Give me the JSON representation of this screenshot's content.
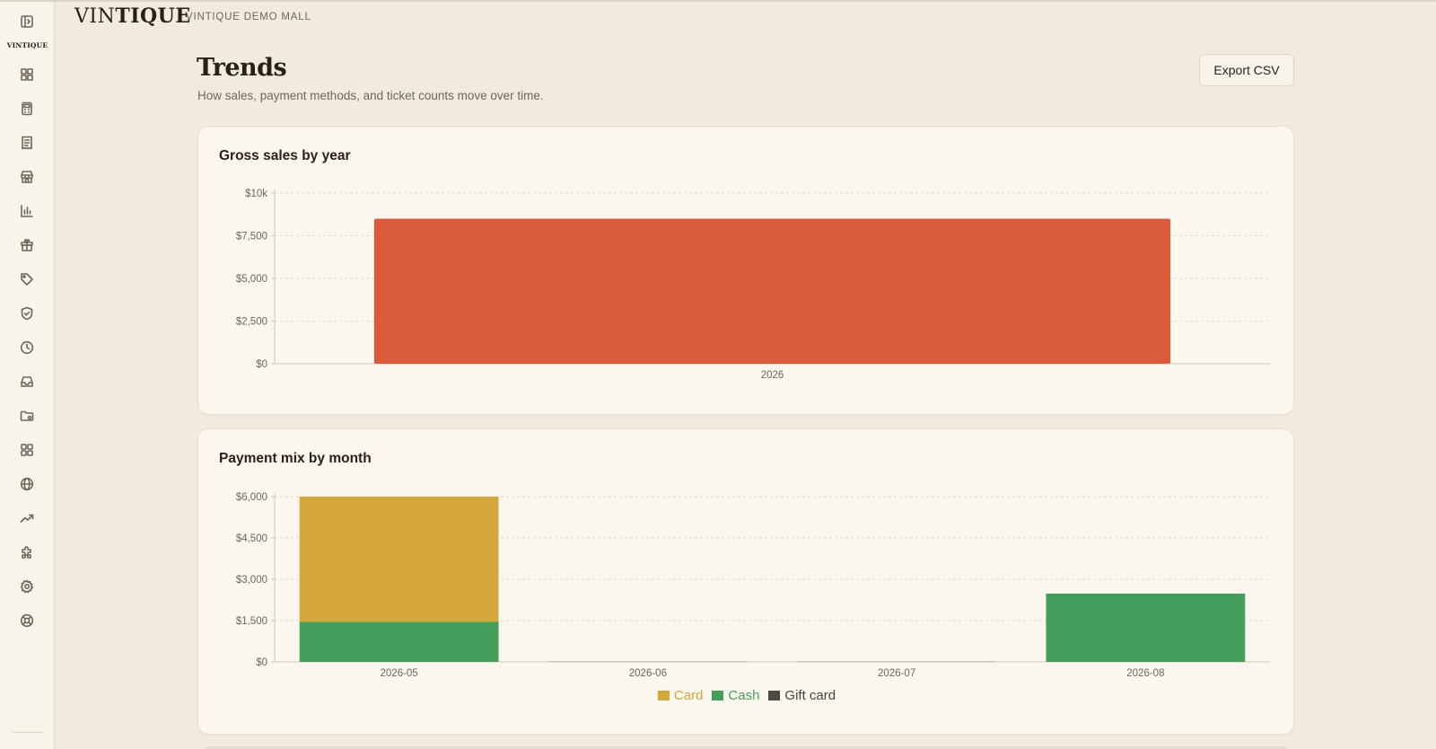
{
  "app": {
    "brand": "VINTIQUE",
    "brand_light": "VIN",
    "brand_bold": "TIQUE",
    "store_name": "VINTIQUE DEMO MALL",
    "sidebar_logo": "VINTIQUE"
  },
  "page": {
    "title": "Trends",
    "subtitle": "How sales, payment methods, and ticket counts move over time.",
    "export_label": "Export CSV"
  },
  "sidebar": {
    "items": [
      {
        "icon": "sidebar-toggle-icon"
      },
      {
        "icon": "dashboard-icon"
      },
      {
        "icon": "calculator-icon"
      },
      {
        "icon": "receipt-icon"
      },
      {
        "icon": "store-icon"
      },
      {
        "icon": "bar-chart-icon"
      },
      {
        "icon": "gift-icon"
      },
      {
        "icon": "tag-icon"
      },
      {
        "icon": "shield-check-icon"
      },
      {
        "icon": "clock-icon"
      },
      {
        "icon": "inbox-icon"
      },
      {
        "icon": "folder-icon"
      },
      {
        "icon": "apps-grid-icon"
      },
      {
        "icon": "globe-icon"
      },
      {
        "icon": "trending-up-icon"
      },
      {
        "icon": "puzzle-icon"
      },
      {
        "icon": "settings-gear-icon"
      },
      {
        "icon": "support-lifebuoy-icon"
      }
    ]
  },
  "colors": {
    "accent": "#da5a3c",
    "card": "#d4a73b",
    "cash": "#469e5c",
    "gift_card": "#4f4a3f"
  },
  "chart_data": [
    {
      "type": "bar",
      "title": "Gross sales by year",
      "categories": [
        "2026"
      ],
      "values": [
        8500
      ],
      "ylim": [
        0,
        10000
      ],
      "yticks": [
        "$0",
        "$2,500",
        "$5,000",
        "$7,500",
        "$10k"
      ],
      "ytick_values": [
        0,
        2500,
        5000,
        7500,
        10000
      ],
      "grid": true
    },
    {
      "type": "bar",
      "stacked": true,
      "title": "Payment mix by month",
      "categories": [
        "2026-05",
        "2026-06",
        "2026-07",
        "2026-08"
      ],
      "series": [
        {
          "name": "Cash",
          "values": [
            1450,
            0,
            0,
            2480
          ]
        },
        {
          "name": "Card",
          "values": [
            4550,
            0,
            0,
            0
          ]
        },
        {
          "name": "Gift card",
          "values": [
            0,
            0,
            0,
            0
          ]
        }
      ],
      "ylim": [
        0,
        6000
      ],
      "yticks": [
        "$0",
        "$1,500",
        "$3,000",
        "$4,500",
        "$6,000"
      ],
      "ytick_values": [
        0,
        1500,
        3000,
        4500,
        6000
      ],
      "grid": true,
      "legend_position": "bottom-center",
      "legend": [
        "Card",
        "Cash",
        "Gift card"
      ]
    }
  ]
}
